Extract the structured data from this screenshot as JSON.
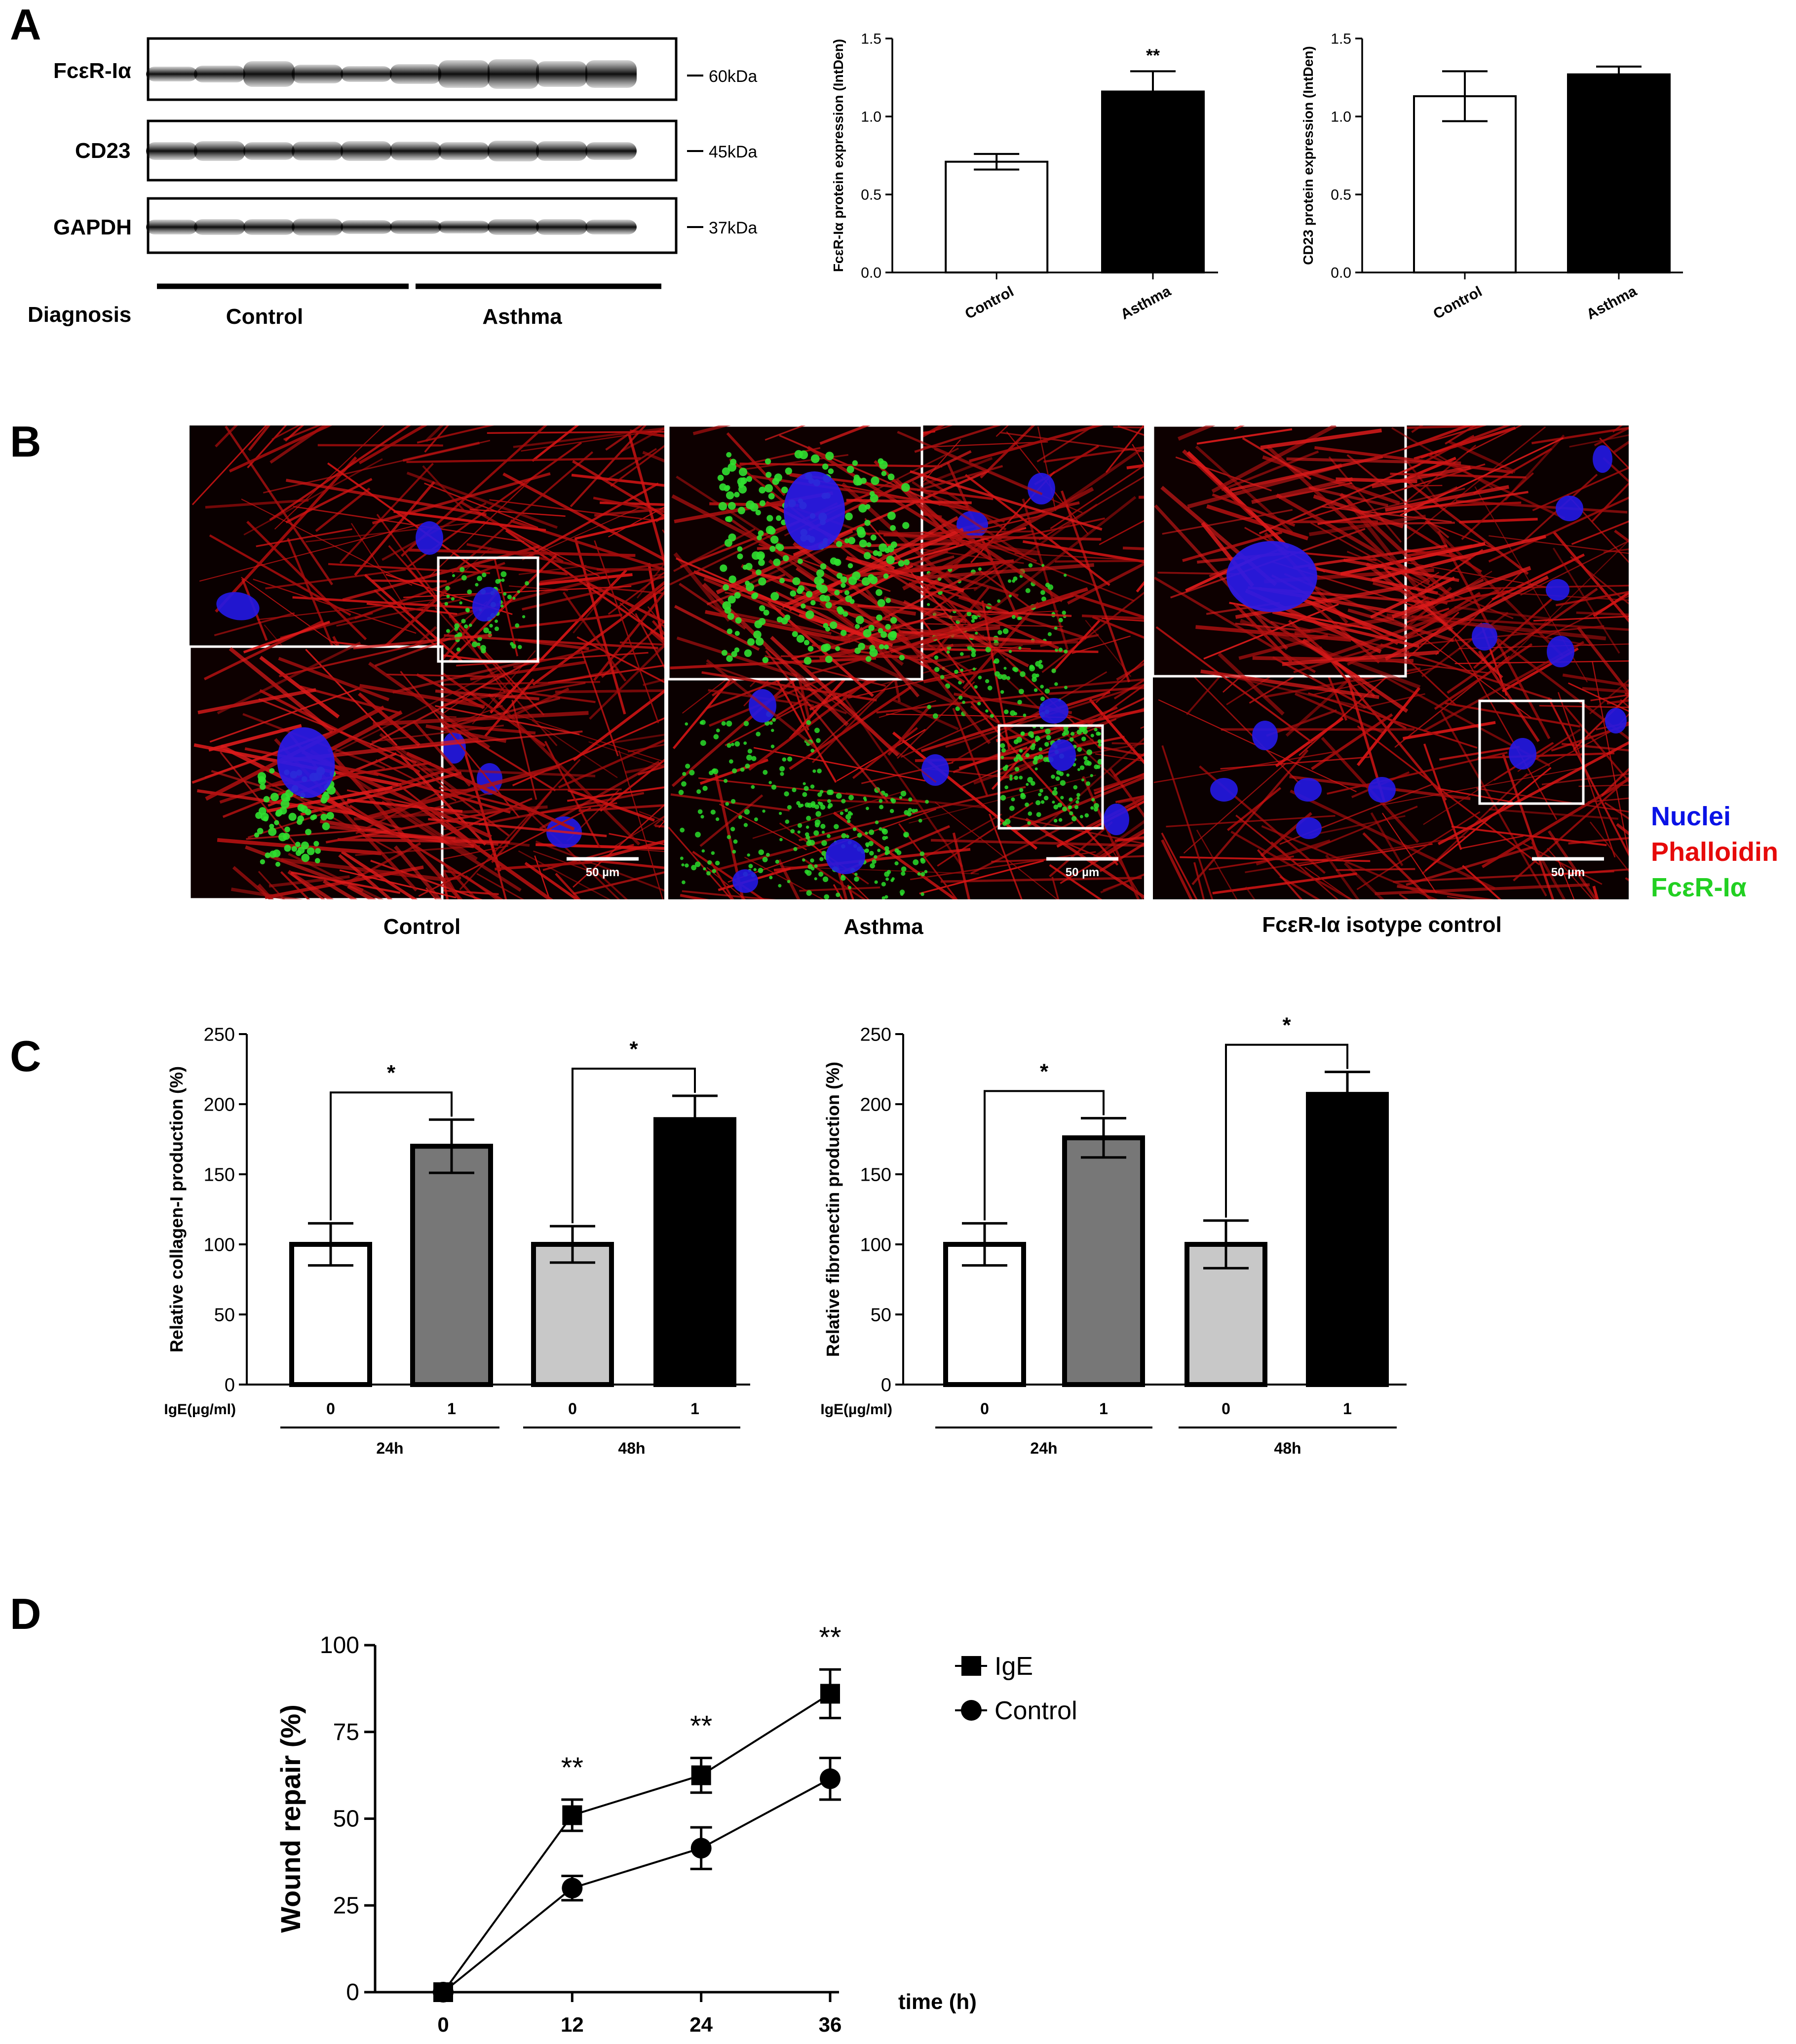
{
  "panels": {
    "a": {
      "letter": "A"
    },
    "b": {
      "letter": "B"
    },
    "c": {
      "letter": "C"
    },
    "d": {
      "letter": "D"
    }
  },
  "western_blot": {
    "rows": [
      {
        "label": "FcεR-Iα",
        "size": "60kDa"
      },
      {
        "label": "CD23",
        "size": "45kDa"
      },
      {
        "label": "GAPDH",
        "size": "37kDa"
      }
    ],
    "diagnosis_label": "Diagnosis",
    "groups": [
      "Control",
      "Asthma"
    ]
  },
  "microscopy": {
    "panels": [
      {
        "caption": "Control",
        "scale_bar": "50 µm"
      },
      {
        "caption": "Asthma",
        "scale_bar": "50 µm"
      },
      {
        "caption": "FcεR-Iα isotype control",
        "scale_bar": "50 µm"
      }
    ],
    "legend": [
      {
        "label": "Nuclei",
        "color": "#0a12e6"
      },
      {
        "label": "Phalloidin",
        "color": "#e60a0a"
      },
      {
        "label": "FcεR-Iα",
        "color": "#22d022"
      }
    ]
  },
  "chart_data": [
    {
      "type": "bar",
      "panel": "A",
      "ylabel": "FcεR-Iα protein expression (IntDen)",
      "categories": [
        "Control",
        "Asthma"
      ],
      "values": [
        0.71,
        1.16
      ],
      "errors": [
        0.05,
        0.13
      ],
      "fills": [
        "#ffffff",
        "#000000"
      ],
      "significance": [
        "",
        "**"
      ],
      "ylim": [
        0,
        1.5
      ],
      "yticks": [
        "0.0",
        "0.5",
        "1.0",
        "1.5"
      ]
    },
    {
      "type": "bar",
      "panel": "A",
      "ylabel": "CD23 protein expression (IntDen)",
      "categories": [
        "Control",
        "Asthma"
      ],
      "values": [
        1.13,
        1.27
      ],
      "errors": [
        0.16,
        0.05
      ],
      "fills": [
        "#ffffff",
        "#000000"
      ],
      "significance": [
        "",
        ""
      ],
      "ylim": [
        0,
        1.5
      ],
      "yticks": [
        "0.0",
        "0.5",
        "1.0",
        "1.5"
      ]
    },
    {
      "type": "bar",
      "panel": "C",
      "ylabel": "Relative collagen-I production (%)",
      "x_row_label": "IgE(µg/ml)",
      "categories": [
        "0",
        "1",
        "0",
        "1"
      ],
      "groups": [
        "24h",
        "48h"
      ],
      "values": [
        100,
        170,
        100,
        189
      ],
      "errors": [
        15,
        19,
        13,
        17
      ],
      "fills": [
        "#ffffff",
        "#777777",
        "#c8c8c8",
        "#000000"
      ],
      "brackets": [
        "*",
        "*"
      ],
      "ylim": [
        0,
        250
      ],
      "yticks": [
        "0",
        "50",
        "100",
        "150",
        "200",
        "250"
      ]
    },
    {
      "type": "bar",
      "panel": "C",
      "ylabel": "Relative fibronectin production (%)",
      "x_row_label": "IgE(µg/ml)",
      "categories": [
        "0",
        "1",
        "0",
        "1"
      ],
      "groups": [
        "24h",
        "48h"
      ],
      "values": [
        100,
        176,
        100,
        207
      ],
      "errors": [
        15,
        14,
        17,
        16
      ],
      "fills": [
        "#ffffff",
        "#777777",
        "#c8c8c8",
        "#000000"
      ],
      "brackets": [
        "*",
        "*"
      ],
      "ylim": [
        0,
        250
      ],
      "yticks": [
        "0",
        "50",
        "100",
        "150",
        "200",
        "250"
      ]
    },
    {
      "type": "line",
      "panel": "D",
      "ylabel": "Wound repair (%)",
      "xlabel": "time (h)",
      "x": [
        0,
        12,
        24,
        36
      ],
      "xticks": [
        "0",
        "12",
        "24",
        "36"
      ],
      "ylim": [
        0,
        100
      ],
      "yticks": [
        "0",
        "25",
        "50",
        "75",
        "100"
      ],
      "series": [
        {
          "name": "IgE",
          "marker": "square",
          "values": [
            0,
            51,
            62.5,
            86
          ],
          "errors": [
            0,
            4.5,
            5,
            7
          ]
        },
        {
          "name": "Control",
          "marker": "circle",
          "values": [
            0,
            30,
            41.5,
            61.5
          ],
          "errors": [
            0,
            3.5,
            6,
            6
          ]
        }
      ],
      "significance": [
        "",
        "**",
        "**",
        "**"
      ],
      "legend_position": "right"
    }
  ]
}
